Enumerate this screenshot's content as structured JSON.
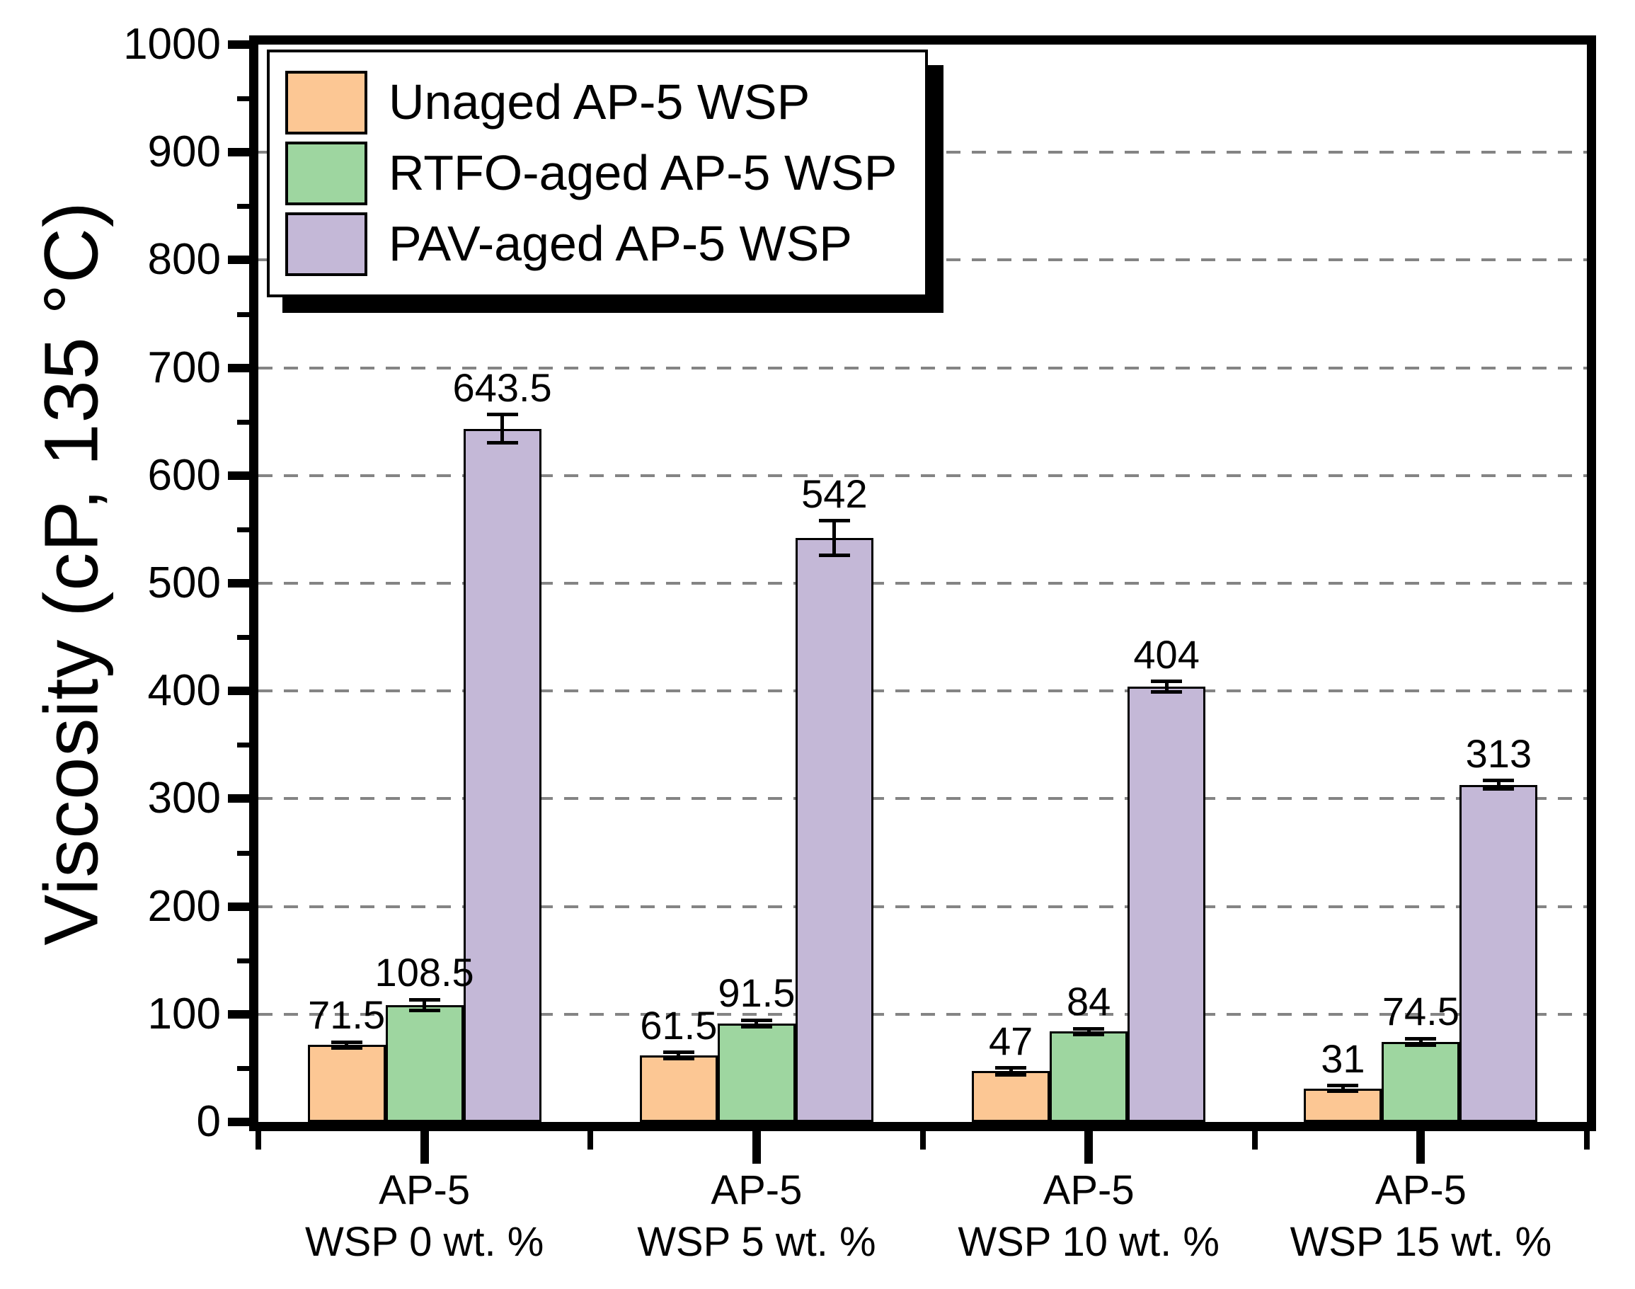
{
  "chart_data": {
    "type": "bar",
    "title": "",
    "ylabel": "Viscosity (cP, 135 °C)",
    "xlabel": "",
    "ylim": [
      0,
      1000
    ],
    "y_major_tick_step": 100,
    "y_minor_tick_step": 50,
    "grid": {
      "axis": "y",
      "style": "dashed",
      "color": "#848484",
      "interval": 100
    },
    "legend_position": "top-left-inside",
    "categories": [
      "AP-5\nWSP 0 wt. %",
      "AP-5\nWSP 5 wt. %",
      "AP-5\nWSP 10 wt. %",
      "AP-5\nWSP 15 wt. %"
    ],
    "series": [
      {
        "name": "Unaged AP-5 WSP",
        "color": "#FCC794",
        "values": [
          71.5,
          61.5,
          47,
          31
        ],
        "errors": [
          2,
          3,
          3,
          2
        ]
      },
      {
        "name": "RTFO-aged AP-5 WSP",
        "color": "#9ED6A0",
        "values": [
          108.5,
          91.5,
          84,
          74.5
        ],
        "errors": [
          5,
          3,
          2,
          3
        ]
      },
      {
        "name": "PAV-aged AP-5 WSP",
        "color": "#C4B8D7",
        "values": [
          643.5,
          542,
          404,
          313
        ],
        "errors": [
          13,
          16,
          5,
          4
        ]
      }
    ]
  }
}
